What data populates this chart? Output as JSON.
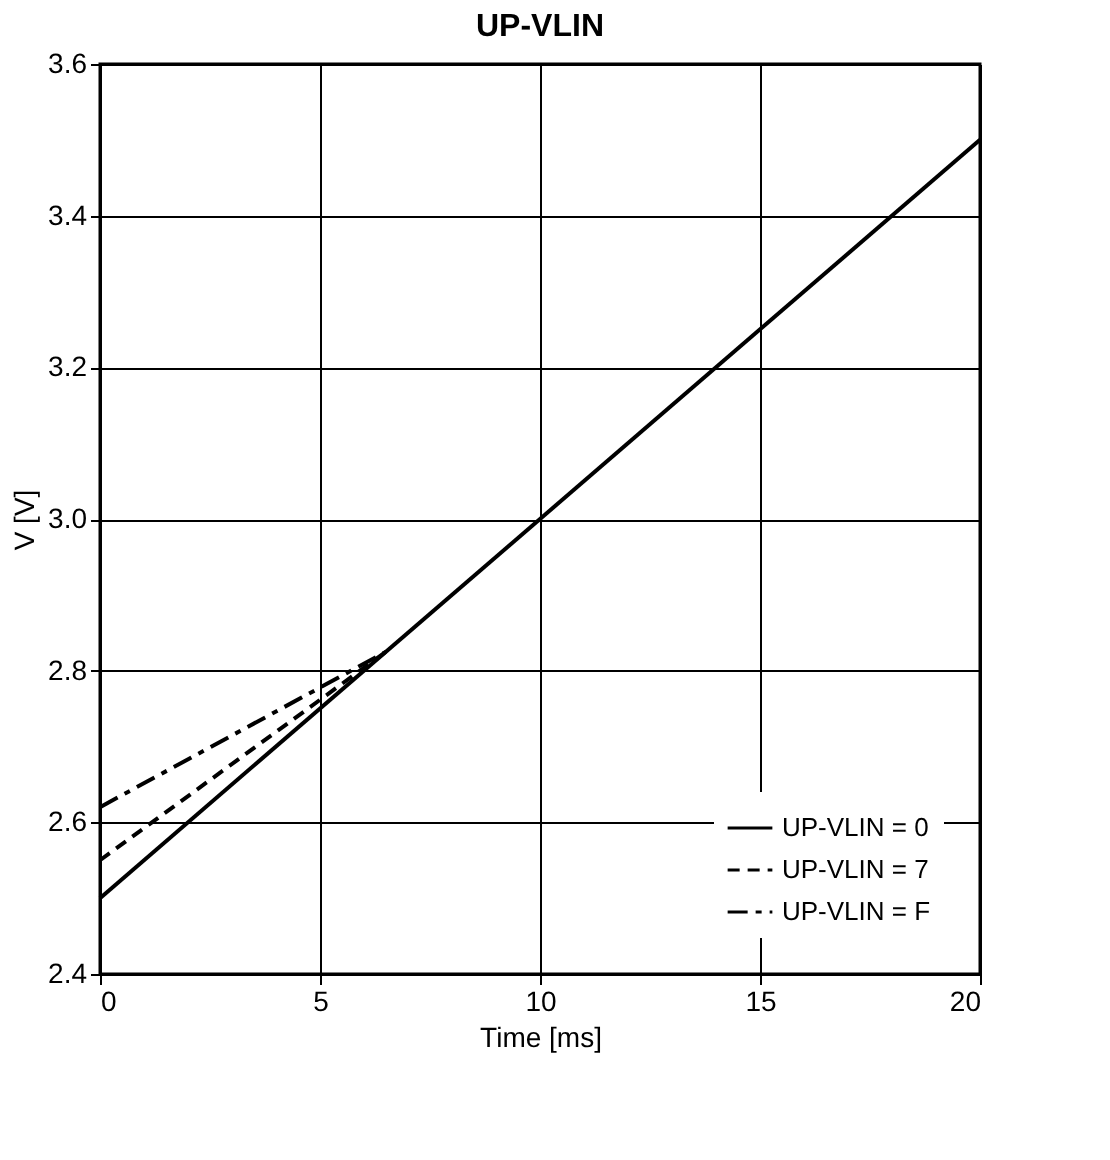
{
  "chart_data": {
    "type": "line",
    "title": "UP-VLIN",
    "xlabel": "Time [ms]",
    "ylabel": "V [V]",
    "xlim": [
      0,
      20
    ],
    "xticks": [
      0,
      5,
      10,
      15,
      20
    ],
    "ylim": [
      2.4,
      3.6
    ],
    "yticks": [
      {
        "value": 2.4,
        "label": "2.4"
      },
      {
        "value": 2.6,
        "label": "2.6"
      },
      {
        "value": 2.8,
        "label": "2.8"
      },
      {
        "value": 3.0,
        "label": "3.0"
      },
      {
        "value": 3.2,
        "label": "3.2"
      },
      {
        "value": 3.4,
        "label": "3.4"
      },
      {
        "value": 3.6,
        "label": "3.6"
      }
    ],
    "grid": true,
    "legend": "bottom right",
    "marker": "none",
    "series": [
      {
        "name": "UP-VLIN = 0",
        "color": "#000000",
        "line_style": "solid",
        "x": [
          0,
          20
        ],
        "values": [
          2.5,
          3.5
        ]
      },
      {
        "name": "UP-VLIN = 7",
        "color": "#000000",
        "line_style": "dashed",
        "x": [
          0,
          6.5
        ],
        "values": [
          2.55,
          2.825
        ]
      },
      {
        "name": "UP-VLIN = F",
        "color": "#000000",
        "line_style": "dashdot",
        "x": [
          0,
          6.5
        ],
        "values": [
          2.62,
          2.825
        ]
      }
    ]
  }
}
